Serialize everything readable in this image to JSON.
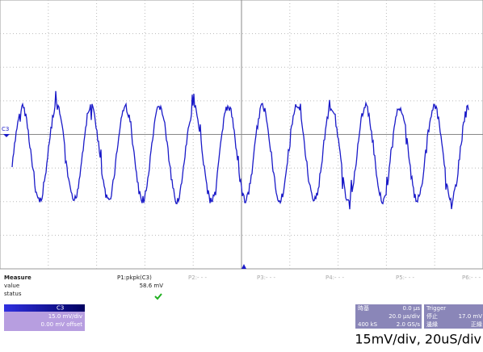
{
  "screen": {
    "channel_marker": "C3"
  },
  "measure": {
    "title": "Measure",
    "rows": [
      "value",
      "status"
    ],
    "params": [
      {
        "name": "P1:pkpk(C3)",
        "value": "58.6 mV"
      },
      {
        "name": "P2:- - -"
      },
      {
        "name": "P3:- - -"
      },
      {
        "name": "P4:- - -"
      },
      {
        "name": "P5:- - -"
      },
      {
        "name": "P6:- - -"
      }
    ]
  },
  "channel": {
    "name": "C3",
    "scale": "15.0 mV/div",
    "offset": "0.00 mV offset"
  },
  "timebase": {
    "title": "時基",
    "delay": "0.0 µs",
    "scale": "20.0 µs/div",
    "samples": "400 kS",
    "rate": "2.0 GS/s"
  },
  "trigger": {
    "title": "Trigger",
    "mode": "停止",
    "level": "17.0 mV",
    "type": "邊緣",
    "slope": "正緣"
  },
  "caption": "15mV/div, 20uS/div"
}
